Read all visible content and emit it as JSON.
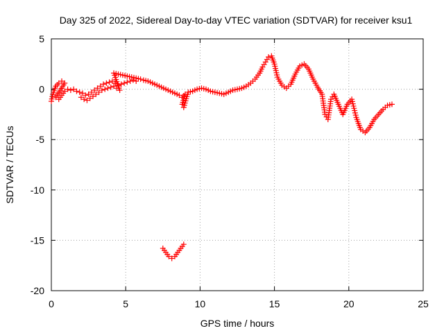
{
  "chart_data": {
    "type": "scatter",
    "title": "Day 325 of 2022, Sidereal Day-to-day VTEC variation (SDTVAR) for receiver ksu1",
    "xlabel": "GPS time / hours",
    "ylabel": "SDTVAR / TECUs",
    "xlim": [
      0,
      25
    ],
    "ylim": [
      -20,
      5
    ],
    "xticks": [
      "0",
      "5",
      "10",
      "15",
      "20",
      "25"
    ],
    "yticks": [
      "5",
      "0",
      "-5",
      "-10",
      "-15",
      "-20"
    ],
    "grid": true,
    "marker": "+",
    "color": "#ff0000",
    "series": [
      {
        "name": "ksu1",
        "points": [
          [
            0.0,
            -1.2
          ],
          [
            0.1,
            -0.5
          ],
          [
            0.3,
            0.3
          ],
          [
            0.5,
            0.6
          ],
          [
            0.7,
            0.8
          ],
          [
            0.9,
            0.6
          ],
          [
            0.3,
            -0.8
          ],
          [
            0.5,
            -1.0
          ],
          [
            0.7,
            -0.6
          ],
          [
            0.9,
            -0.2
          ],
          [
            1.1,
            0.0
          ],
          [
            1.3,
            -0.1
          ],
          [
            1.5,
            0.0
          ],
          [
            1.7,
            -0.2
          ],
          [
            1.9,
            -0.3
          ],
          [
            2.1,
            -0.4
          ],
          [
            2.3,
            -0.6
          ],
          [
            2.5,
            -0.5
          ],
          [
            2.7,
            -0.3
          ],
          [
            2.9,
            -0.1
          ],
          [
            3.1,
            0.1
          ],
          [
            3.3,
            0.3
          ],
          [
            3.5,
            0.5
          ],
          [
            3.7,
            0.6
          ],
          [
            3.9,
            0.7
          ],
          [
            4.1,
            0.8
          ],
          [
            4.3,
            0.6
          ],
          [
            4.5,
            0.4
          ],
          [
            4.7,
            0.5
          ],
          [
            4.9,
            0.6
          ],
          [
            5.1,
            0.7
          ],
          [
            5.3,
            0.8
          ],
          [
            5.5,
            0.9
          ],
          [
            5.7,
            0.8
          ],
          [
            2.0,
            -0.8
          ],
          [
            2.2,
            -1.0
          ],
          [
            2.4,
            -1.1
          ],
          [
            2.6,
            -0.9
          ],
          [
            2.8,
            -0.7
          ],
          [
            3.0,
            -0.5
          ],
          [
            3.2,
            -0.3
          ],
          [
            3.4,
            -0.1
          ],
          [
            3.6,
            0.0
          ],
          [
            3.8,
            0.1
          ],
          [
            4.0,
            0.2
          ],
          [
            4.2,
            0.3
          ],
          [
            4.4,
            0.1
          ],
          [
            4.6,
            -0.1
          ],
          [
            4.2,
            1.6
          ],
          [
            4.5,
            1.5
          ],
          [
            4.8,
            1.4
          ],
          [
            5.1,
            1.3
          ],
          [
            5.4,
            1.2
          ],
          [
            5.7,
            1.1
          ],
          [
            6.0,
            1.0
          ],
          [
            6.2,
            0.9
          ],
          [
            6.5,
            0.8
          ],
          [
            6.8,
            0.6
          ],
          [
            7.1,
            0.4
          ],
          [
            7.4,
            0.2
          ],
          [
            7.7,
            0.0
          ],
          [
            8.0,
            -0.2
          ],
          [
            8.3,
            -0.4
          ],
          [
            8.6,
            -0.6
          ],
          [
            8.8,
            -0.8
          ],
          [
            9.0,
            -0.5
          ],
          [
            8.8,
            -1.5
          ],
          [
            8.9,
            -1.8
          ],
          [
            9.2,
            -0.3
          ],
          [
            9.5,
            -0.2
          ],
          [
            9.8,
            0.0
          ],
          [
            10.1,
            0.1
          ],
          [
            10.4,
            0.0
          ],
          [
            10.7,
            -0.2
          ],
          [
            11.0,
            -0.3
          ],
          [
            11.3,
            -0.4
          ],
          [
            11.6,
            -0.5
          ],
          [
            11.9,
            -0.3
          ],
          [
            12.2,
            -0.1
          ],
          [
            12.5,
            0.0
          ],
          [
            12.8,
            0.1
          ],
          [
            13.1,
            0.3
          ],
          [
            13.4,
            0.6
          ],
          [
            13.7,
            1.0
          ],
          [
            14.0,
            1.6
          ],
          [
            14.2,
            2.2
          ],
          [
            14.4,
            2.7
          ],
          [
            14.6,
            3.2
          ],
          [
            14.8,
            3.3
          ],
          [
            15.0,
            2.5
          ],
          [
            15.2,
            1.2
          ],
          [
            15.5,
            0.4
          ],
          [
            15.8,
            0.1
          ],
          [
            16.1,
            0.5
          ],
          [
            16.4,
            1.5
          ],
          [
            16.7,
            2.3
          ],
          [
            17.0,
            2.5
          ],
          [
            17.3,
            2.0
          ],
          [
            17.6,
            1.0
          ],
          [
            17.9,
            0.2
          ],
          [
            18.2,
            -0.5
          ],
          [
            18.4,
            -2.5
          ],
          [
            18.6,
            -3.0
          ],
          [
            18.8,
            -1.0
          ],
          [
            19.0,
            -0.5
          ],
          [
            19.3,
            -1.5
          ],
          [
            19.6,
            -2.5
          ],
          [
            19.9,
            -1.5
          ],
          [
            20.2,
            -1.0
          ],
          [
            20.5,
            -2.8
          ],
          [
            20.8,
            -4.0
          ],
          [
            21.1,
            -4.3
          ],
          [
            21.4,
            -3.8
          ],
          [
            21.7,
            -3.0
          ],
          [
            22.0,
            -2.5
          ],
          [
            22.3,
            -2.0
          ],
          [
            22.6,
            -1.6
          ],
          [
            22.9,
            -1.5
          ],
          [
            7.5,
            -15.8
          ],
          [
            7.7,
            -16.2
          ],
          [
            7.9,
            -16.6
          ],
          [
            8.1,
            -16.8
          ],
          [
            8.3,
            -16.6
          ],
          [
            8.5,
            -16.2
          ],
          [
            8.7,
            -15.8
          ],
          [
            8.9,
            -15.4
          ]
        ]
      }
    ]
  }
}
